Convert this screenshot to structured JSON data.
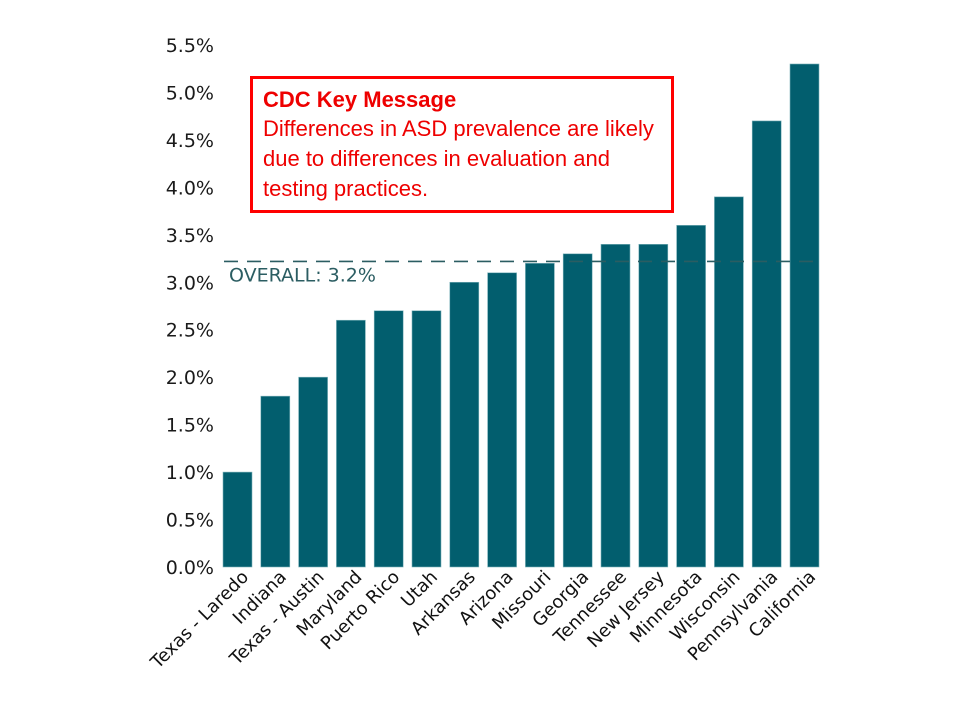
{
  "chart_data": {
    "type": "bar",
    "title": "",
    "xlabel": "",
    "ylabel": "",
    "ylim": [
      0,
      5.5
    ],
    "y_ticks": [
      "0.0%",
      "0.5%",
      "1.0%",
      "1.5%",
      "2.0%",
      "2.5%",
      "3.0%",
      "3.5%",
      "4.0%",
      "4.5%",
      "5.0%",
      "5.5%"
    ],
    "y_tick_values": [
      0,
      0.5,
      1.0,
      1.5,
      2.0,
      2.5,
      3.0,
      3.5,
      4.0,
      4.5,
      5.0,
      5.5
    ],
    "grid": false,
    "legend": "none",
    "categories": [
      "Texas - Laredo",
      "Indiana",
      "Texas - Austin",
      "Maryland",
      "Puerto Rico",
      "Utah",
      "Arkansas",
      "Arizona",
      "Missouri",
      "Georgia",
      "Tennessee",
      "New Jersey",
      "Minnesota",
      "Wisconsin",
      "Pennsylvania",
      "California"
    ],
    "values": [
      1.0,
      1.8,
      2.0,
      2.6,
      2.7,
      2.7,
      3.0,
      3.1,
      3.2,
      3.3,
      3.4,
      3.4,
      3.6,
      3.9,
      4.7,
      5.3
    ],
    "unit": "%",
    "bar_color": "#025e6e",
    "reference_line": {
      "value": 3.22,
      "label": "OVERALL: 3.2%",
      "color": "#2b5d62",
      "style": "dashed"
    },
    "annotation": {
      "title": "CDC Key Message",
      "body": "Differences in ASD prevalence are likely due to differences in evaluation and testing practices.",
      "color": "#ff0000"
    }
  }
}
